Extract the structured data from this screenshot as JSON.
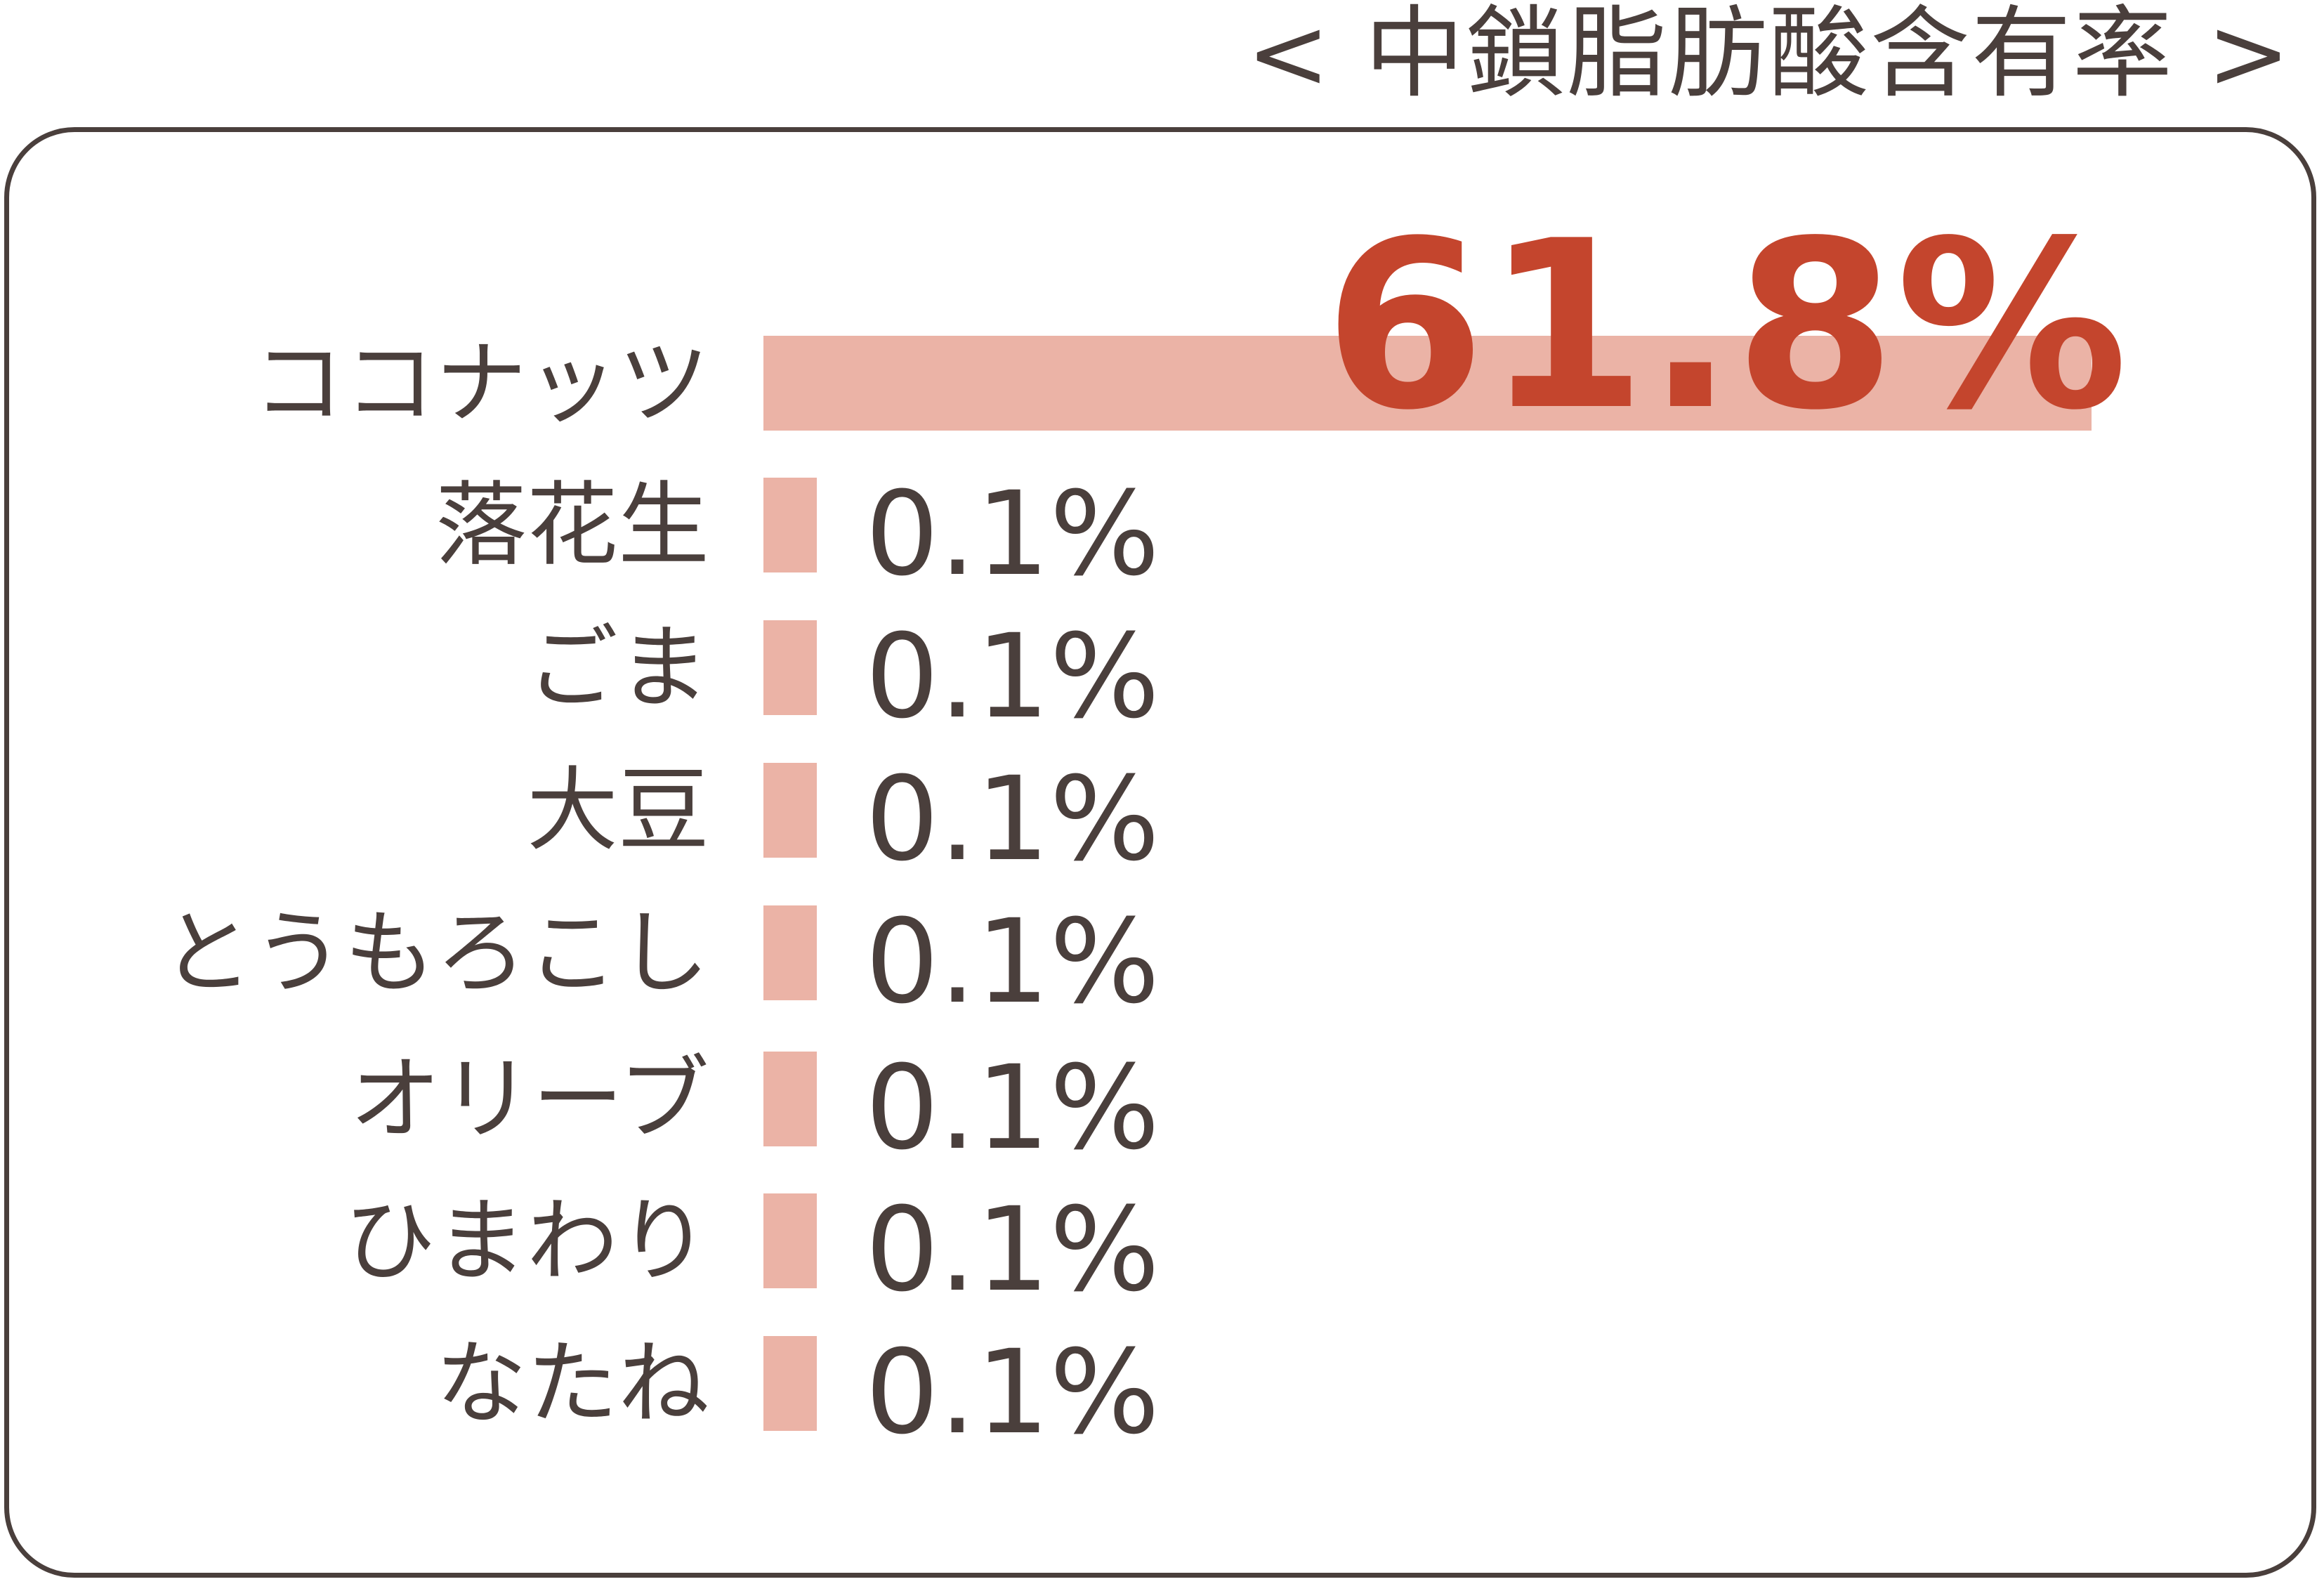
{
  "title": "< 中鎖脂肪酸含有率 >",
  "colors": {
    "bar": "#ebb3a6",
    "highlight": "#c4452d",
    "text": "#4a3f3c"
  },
  "chart_data": {
    "type": "bar",
    "orientation": "horizontal",
    "title": "< 中鎖脂肪酸含有率 >",
    "categories": [
      "ココナッツ",
      "落花生",
      "ごま",
      "大豆",
      "とうもろこし",
      "オリーブ",
      "ひまわり",
      "なたね"
    ],
    "values": [
      61.8,
      0.1,
      0.1,
      0.1,
      0.1,
      0.1,
      0.1,
      0.1
    ],
    "value_labels": [
      "61.8%",
      "0.1%",
      "0.1%",
      "0.1%",
      "0.1%",
      "0.1%",
      "0.1%",
      "0.1%"
    ],
    "unit": "%",
    "grid": false,
    "legend": "none"
  }
}
